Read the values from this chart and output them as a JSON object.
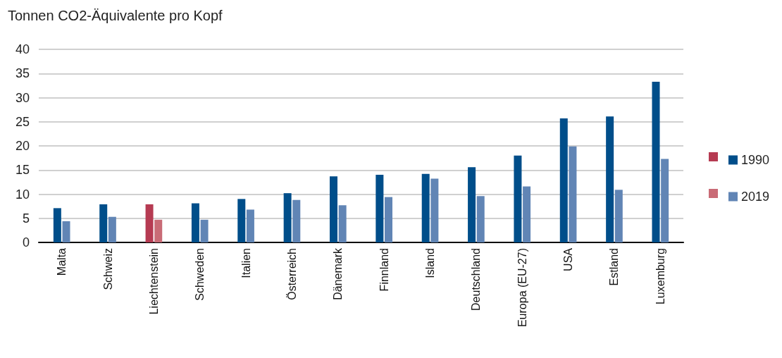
{
  "chart_data": {
    "type": "bar",
    "ylabel": "Tonnen CO2-Äquivalente pro Kopf",
    "categories": [
      "Malta",
      "Schweiz",
      "Liechtenstein",
      "Schweden",
      "Italien",
      "Österreich",
      "Dänemark",
      "Finnland",
      "Island",
      "Deutschland",
      "Europa (EU-27)",
      "USA",
      "Estland",
      "Luxemburg"
    ],
    "series": [
      {
        "name": "1990",
        "color": "#004e8a",
        "colors": [
          "#004e8a",
          "#004e8a",
          "#b63b52",
          "#004e8a",
          "#004e8a",
          "#004e8a",
          "#004e8a",
          "#004e8a",
          "#004e8a",
          "#004e8a",
          "#004e8a",
          "#004e8a",
          "#004e8a",
          "#004e8a"
        ],
        "values": [
          7.1,
          7.9,
          7.9,
          8.1,
          9.0,
          10.2,
          13.7,
          14.0,
          14.2,
          15.6,
          18.0,
          25.7,
          26.1,
          33.3
        ]
      },
      {
        "name": "2019",
        "color": "#6185b5",
        "colors": [
          "#6185b5",
          "#6185b5",
          "#c96b76",
          "#6185b5",
          "#6185b5",
          "#6185b5",
          "#6185b5",
          "#6185b5",
          "#6185b5",
          "#6185b5",
          "#6185b5",
          "#6185b5",
          "#6185b5",
          "#6185b5"
        ],
        "values": [
          4.4,
          5.3,
          4.7,
          4.7,
          6.8,
          8.8,
          7.7,
          9.4,
          13.2,
          9.6,
          11.6,
          19.9,
          10.9,
          17.3
        ]
      }
    ],
    "ylim": [
      0,
      40
    ],
    "yticks": [
      0,
      5,
      10,
      15,
      20,
      25,
      30,
      35,
      40
    ],
    "grid": "y",
    "legend": "right"
  }
}
